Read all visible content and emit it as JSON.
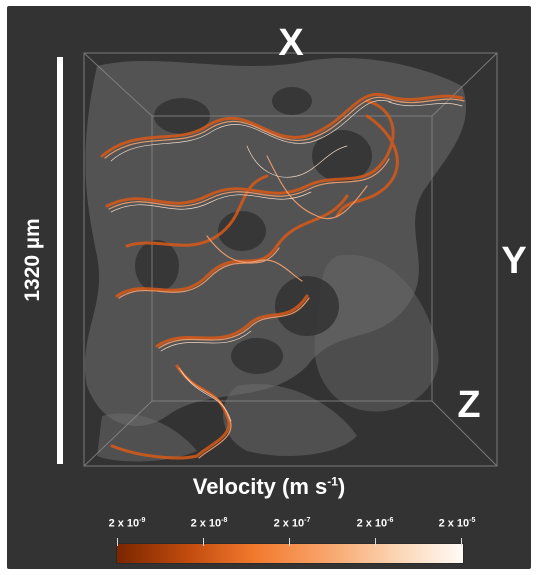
{
  "figure": {
    "axis_labels": {
      "x": "X",
      "y": "Y",
      "z": "Z"
    },
    "scale_bar": {
      "label": "1320 µm"
    },
    "colorbar": {
      "title_main": "Velocity (m s",
      "title_exp": "-1",
      "title_end": ")",
      "ticks": [
        {
          "base": "2 x 10",
          "exp": "-9"
        },
        {
          "base": "2 x 10",
          "exp": "-8"
        },
        {
          "base": "2 x 10",
          "exp": "-7"
        },
        {
          "base": "2 x 10",
          "exp": "-6"
        },
        {
          "base": "2 x 10",
          "exp": "-5"
        }
      ],
      "colors": {
        "low": "#7a2600",
        "mid": "#f27a2e",
        "high": "#fffaf5"
      }
    },
    "background": "#333333"
  }
}
